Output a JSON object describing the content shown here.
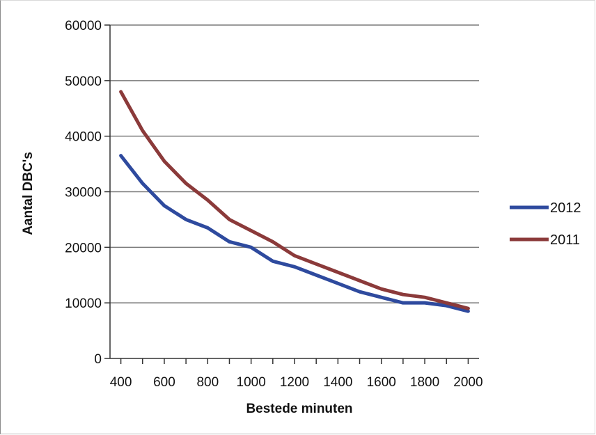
{
  "chart_data": {
    "type": "line",
    "xlabel": "Bestede minuten",
    "ylabel": "Aantal DBC's",
    "xlim": [
      350,
      2050
    ],
    "ylim": [
      0,
      60000
    ],
    "x_ticks": [
      400,
      600,
      800,
      1000,
      1200,
      1400,
      1600,
      1800,
      2000
    ],
    "y_ticks": [
      0,
      10000,
      20000,
      30000,
      40000,
      50000,
      60000
    ],
    "grid": "horizontal",
    "legend": "right",
    "series": [
      {
        "name": "2012",
        "color": "#2e4a9e",
        "x": [
          400,
          500,
          600,
          700,
          800,
          900,
          1000,
          1100,
          1200,
          1300,
          1400,
          1500,
          1600,
          1700,
          1800,
          1900,
          2000
        ],
        "values": [
          36500,
          31500,
          27500,
          25000,
          23500,
          21000,
          20000,
          17500,
          16500,
          15000,
          13500,
          12000,
          11000,
          10000,
          10000,
          9500,
          8500
        ]
      },
      {
        "name": "2011",
        "color": "#8b3a3a",
        "x": [
          400,
          500,
          600,
          700,
          800,
          900,
          1000,
          1100,
          1200,
          1300,
          1400,
          1500,
          1600,
          1700,
          1800,
          1900,
          2000
        ],
        "values": [
          48000,
          41000,
          35500,
          31500,
          28500,
          25000,
          23000,
          21000,
          18500,
          17000,
          15500,
          14000,
          12500,
          11500,
          11000,
          10000,
          9000
        ]
      }
    ]
  }
}
